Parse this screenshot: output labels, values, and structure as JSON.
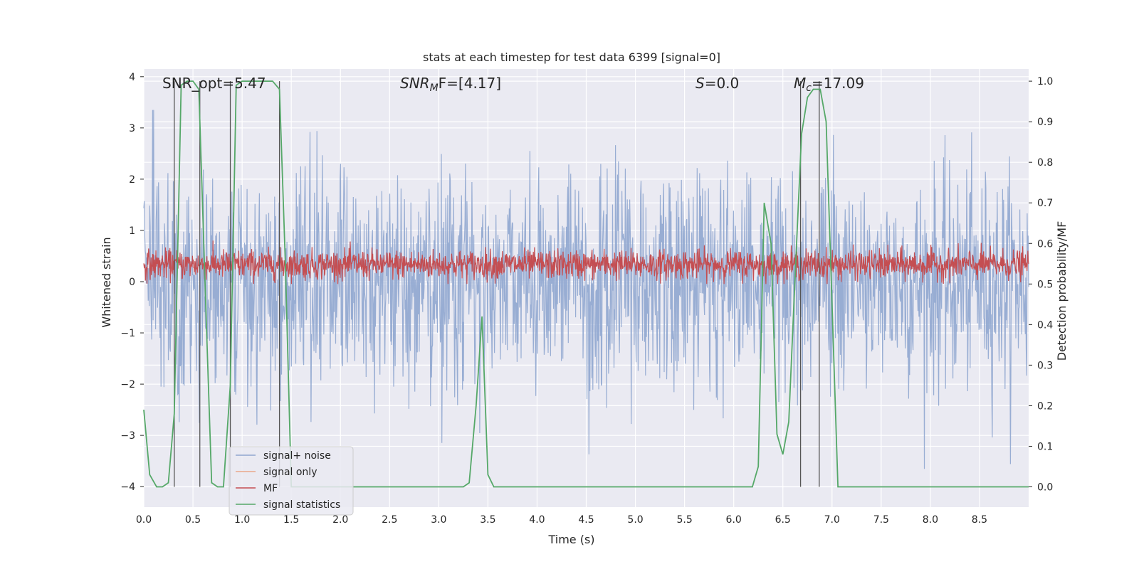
{
  "chart_data": {
    "type": "line",
    "title": "stats at each timestep for test data 6399 [signal=0]",
    "xlabel": "Time (s)",
    "ylabel_left": "Whitened strain",
    "ylabel_right": "Detection probability/MF",
    "xlim": [
      0.0,
      9.0
    ],
    "ylim_left": [
      -4.4,
      4.15
    ],
    "ylim_right": [
      -0.05,
      1.03
    ],
    "x_ticks": [
      0.0,
      0.5,
      1.0,
      1.5,
      2.0,
      2.5,
      3.0,
      3.5,
      4.0,
      4.5,
      5.0,
      5.5,
      6.0,
      6.5,
      7.0,
      7.5,
      8.0,
      8.5
    ],
    "x_tick_labels": [
      "0.0",
      "0.5",
      "1.0",
      "1.5",
      "2.0",
      "2.5",
      "3.0",
      "3.5",
      "4.0",
      "4.5",
      "5.0",
      "5.5",
      "6.0",
      "6.5",
      "7.0",
      "7.5",
      "8.0",
      "8.5"
    ],
    "y_left_ticks": [
      4,
      3,
      2,
      1,
      0,
      -1,
      -2,
      -3,
      -4
    ],
    "y_left_tick_labels": [
      "4",
      "3",
      "2",
      "1",
      "0",
      "−1",
      "−2",
      "−3",
      "−4"
    ],
    "y_right_ticks": [
      1.0,
      0.9,
      0.8,
      0.7,
      0.6,
      0.5,
      0.4,
      0.3,
      0.2,
      0.1,
      0.0
    ],
    "y_right_tick_labels": [
      "1.0",
      "0.9",
      "0.8",
      "0.7",
      "0.6",
      "0.5",
      "0.4",
      "0.3",
      "0.2",
      "0.1",
      "0.0"
    ],
    "grid": true,
    "legend_position": "lower-left",
    "annotations": {
      "snr_opt": "SNR_opt=5.47",
      "snr_mf_prefix": "SNR",
      "snr_mf_sub": "M",
      "snr_mf_suffix": "F=[4.17]",
      "s_prefix": "S",
      "s_suffix": "=0.0",
      "mc_prefix": "M",
      "mc_sub": "c",
      "mc_suffix": "=17.09"
    },
    "series": [
      {
        "name": "signal+ noise",
        "color": "#8fa6cf",
        "axis": "left",
        "description": "dense noise trace spanning roughly -3 to +3.3 whitened strain across 0 to 9 s"
      },
      {
        "name": "signal only",
        "color": "#e9a889",
        "axis": "left",
        "values": []
      },
      {
        "name": "MF",
        "color": "#c44e52",
        "axis": "right",
        "description": "matched-filter trace fluctuating roughly 0.5 to 0.62 on the right axis"
      },
      {
        "name": "signal statistics",
        "color": "#55a868",
        "axis": "right",
        "x": [
          0.0,
          0.06,
          0.13,
          0.19,
          0.25,
          0.31,
          0.38,
          0.44,
          0.5,
          0.56,
          0.63,
          0.69,
          0.75,
          0.81,
          0.88,
          0.94,
          1.0,
          1.06,
          1.13,
          1.19,
          1.25,
          1.31,
          1.38,
          1.44,
          1.5,
          1.56,
          1.63,
          2.0,
          2.5,
          3.0,
          3.25,
          3.31,
          3.38,
          3.44,
          3.5,
          3.56,
          3.63,
          4.0,
          5.0,
          6.0,
          6.19,
          6.25,
          6.31,
          6.38,
          6.44,
          6.5,
          6.56,
          6.63,
          6.69,
          6.75,
          6.81,
          6.88,
          6.94,
          7.0,
          7.06,
          7.13,
          7.2,
          8.0,
          9.0
        ],
        "y": [
          0.19,
          0.03,
          0.0,
          0.0,
          0.01,
          0.18,
          0.99,
          1.0,
          1.0,
          0.98,
          0.45,
          0.01,
          0.0,
          0.0,
          0.25,
          0.99,
          1.0,
          1.0,
          1.0,
          1.0,
          1.0,
          1.0,
          0.98,
          0.55,
          0.0,
          0.0,
          0.0,
          0.0,
          0.0,
          0.0,
          0.0,
          0.01,
          0.2,
          0.42,
          0.03,
          0.0,
          0.0,
          0.0,
          0.0,
          0.0,
          0.0,
          0.05,
          0.7,
          0.6,
          0.13,
          0.08,
          0.16,
          0.55,
          0.87,
          0.96,
          0.98,
          0.98,
          0.9,
          0.45,
          0.0,
          0.0,
          0.0,
          0.0,
          0.0
        ]
      }
    ],
    "vertical_markers": [
      0.31,
      0.57,
      0.88,
      1.38,
      6.68,
      6.87
    ]
  }
}
